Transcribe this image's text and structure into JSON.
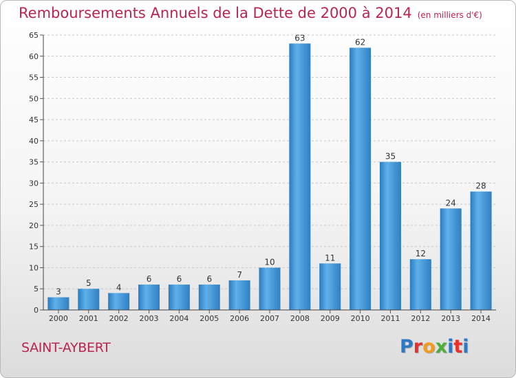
{
  "header": {
    "title": "Remboursements Annuels de la Dette de 2000 à 2014",
    "unit": "(en milliers d'€)"
  },
  "footer": {
    "place": "SAINT-AYBERT",
    "logo": [
      "P",
      "r",
      "o",
      "x",
      "i",
      "t",
      "i"
    ],
    "logo_colors": [
      "#2f79c4",
      "#e8312e",
      "#f29b1d",
      "#4fae3a",
      "#2f79c4",
      "#e8312e",
      "#2f79c4"
    ]
  },
  "chart_data": {
    "type": "bar",
    "title": "Remboursements Annuels de la Dette de 2000 à 2014",
    "subtitle": "(en milliers d'€)",
    "categories": [
      "2000",
      "2001",
      "2002",
      "2003",
      "2004",
      "2005",
      "2006",
      "2007",
      "2008",
      "2009",
      "2010",
      "2011",
      "2012",
      "2013",
      "2014"
    ],
    "values": [
      3,
      5,
      4,
      6,
      6,
      6,
      7,
      10,
      63,
      11,
      62,
      35,
      12,
      24,
      28
    ],
    "ylim": [
      0,
      65
    ],
    "yticks": [
      0,
      5,
      10,
      15,
      20,
      25,
      30,
      35,
      40,
      45,
      50,
      55,
      60,
      65
    ],
    "grid": true,
    "bar_color": "#3f97d8"
  }
}
